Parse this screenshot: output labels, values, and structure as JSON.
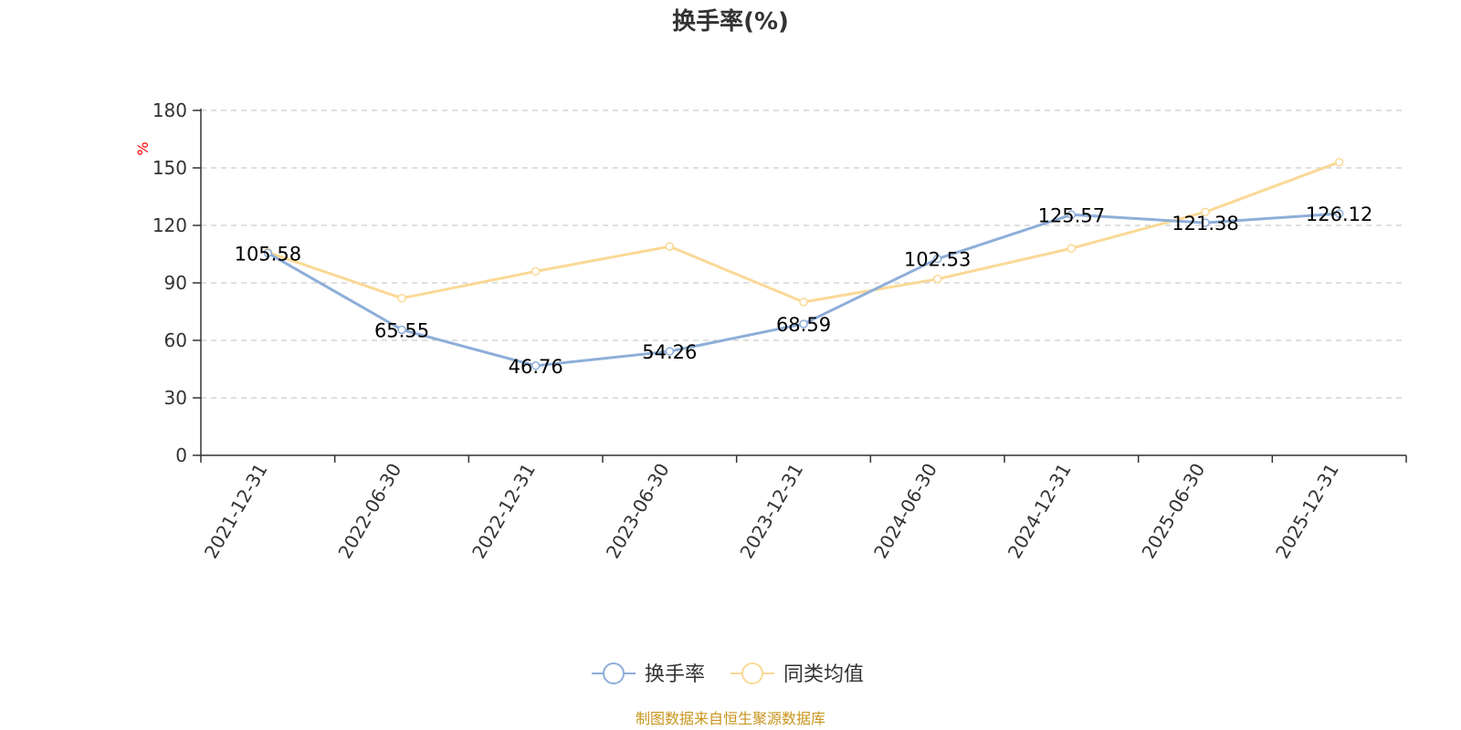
{
  "chart_data": {
    "type": "line",
    "title": "换手率(%)",
    "ylabel": "%",
    "ylim": [
      0,
      180
    ],
    "yticks": [
      0,
      30,
      60,
      90,
      120,
      150,
      180
    ],
    "grid": true,
    "legend_position": "bottom-center",
    "categories": [
      "2021-12-31",
      "2022-06-30",
      "2022-12-31",
      "2023-06-30",
      "2023-12-31",
      "2024-06-30",
      "2024-12-31",
      "2025-06-30",
      "2025-12-31"
    ],
    "series": [
      {
        "name": "换手率",
        "color": "#8eaed9",
        "values": [
          105.58,
          65.55,
          46.76,
          54.26,
          68.59,
          102.53,
          125.57,
          121.38,
          126.12
        ],
        "labels": [
          "105.58",
          "65.55",
          "46.76",
          "54.26",
          "68.59",
          "102.53",
          "125.57",
          "121.38",
          "126.12"
        ]
      },
      {
        "name": "同类均值",
        "color": "#fad996",
        "values": [
          106,
          82,
          96,
          109,
          80,
          92,
          108,
          127,
          153
        ]
      }
    ],
    "source": "制图数据来自恒生聚源数据库"
  }
}
